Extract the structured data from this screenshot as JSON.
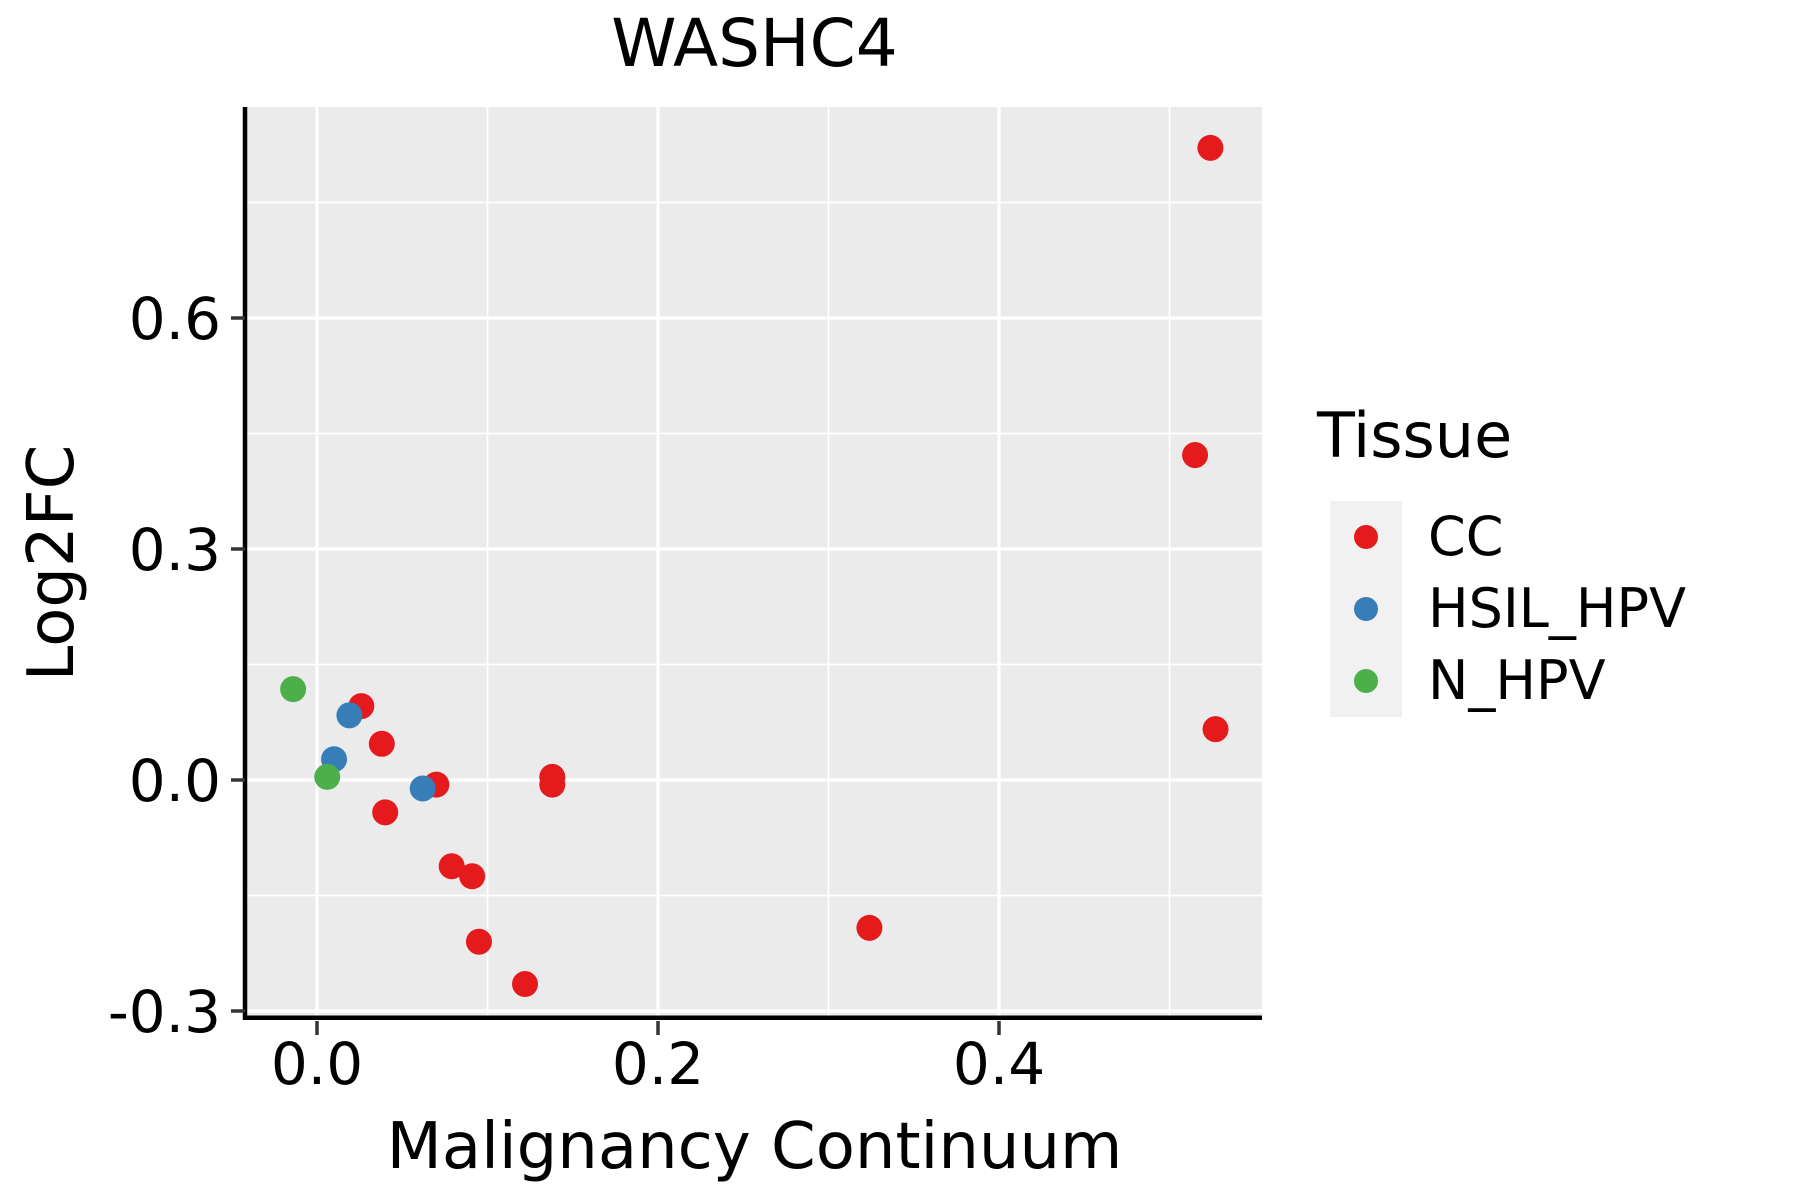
{
  "figure": {
    "title": "WASHC4"
  },
  "chart_data": {
    "type": "scatter",
    "title": "WASHC4",
    "xlabel": "Malignancy Continuum",
    "ylabel": "Log2FC",
    "xlim": [
      -0.041,
      0.554
    ],
    "ylim": [
      -0.312,
      0.874
    ],
    "x_ticks": [
      0.0,
      0.2,
      0.4
    ],
    "x_tick_labels": [
      "0.0",
      "0.2",
      "0.4"
    ],
    "x_minor_ticks": [
      0.1,
      0.3,
      0.5
    ],
    "y_ticks": [
      -0.3,
      0.0,
      0.3,
      0.6
    ],
    "y_tick_labels": [
      "-0.3",
      "0.0",
      "0.3",
      "0.6"
    ],
    "y_minor_ticks": [
      -0.15,
      0.15,
      0.45,
      0.75
    ],
    "grid": true,
    "panel_bg": "#EBEBEB",
    "grid_color": "#FFFFFF",
    "axis_line_color": "#000000",
    "tick_mark_color": "#333333",
    "legend_title": "Tissue",
    "legend_position": "right",
    "legend_key_bg": "#F1F1F1",
    "series": [
      {
        "name": "CC",
        "color": "#E41A1C",
        "points": [
          [
            0.026,
            0.096
          ],
          [
            0.038,
            0.047
          ],
          [
            0.07,
            -0.006
          ],
          [
            0.04,
            -0.042
          ],
          [
            0.079,
            -0.112
          ],
          [
            0.091,
            -0.125
          ],
          [
            0.138,
            0.004
          ],
          [
            0.138,
            -0.006
          ],
          [
            0.095,
            -0.21
          ],
          [
            0.122,
            -0.265
          ],
          [
            0.324,
            -0.192
          ],
          [
            0.524,
            0.821
          ],
          [
            0.515,
            0.422
          ],
          [
            0.527,
            0.066
          ]
        ]
      },
      {
        "name": "HSIL_HPV",
        "color": "#377EB8",
        "points": [
          [
            0.019,
            0.084
          ],
          [
            0.01,
            0.027
          ],
          [
            0.062,
            -0.011
          ]
        ]
      },
      {
        "name": "N_HPV",
        "color": "#4DAF4A",
        "points": [
          [
            -0.014,
            0.118
          ],
          [
            0.006,
            0.004
          ]
        ]
      }
    ]
  }
}
